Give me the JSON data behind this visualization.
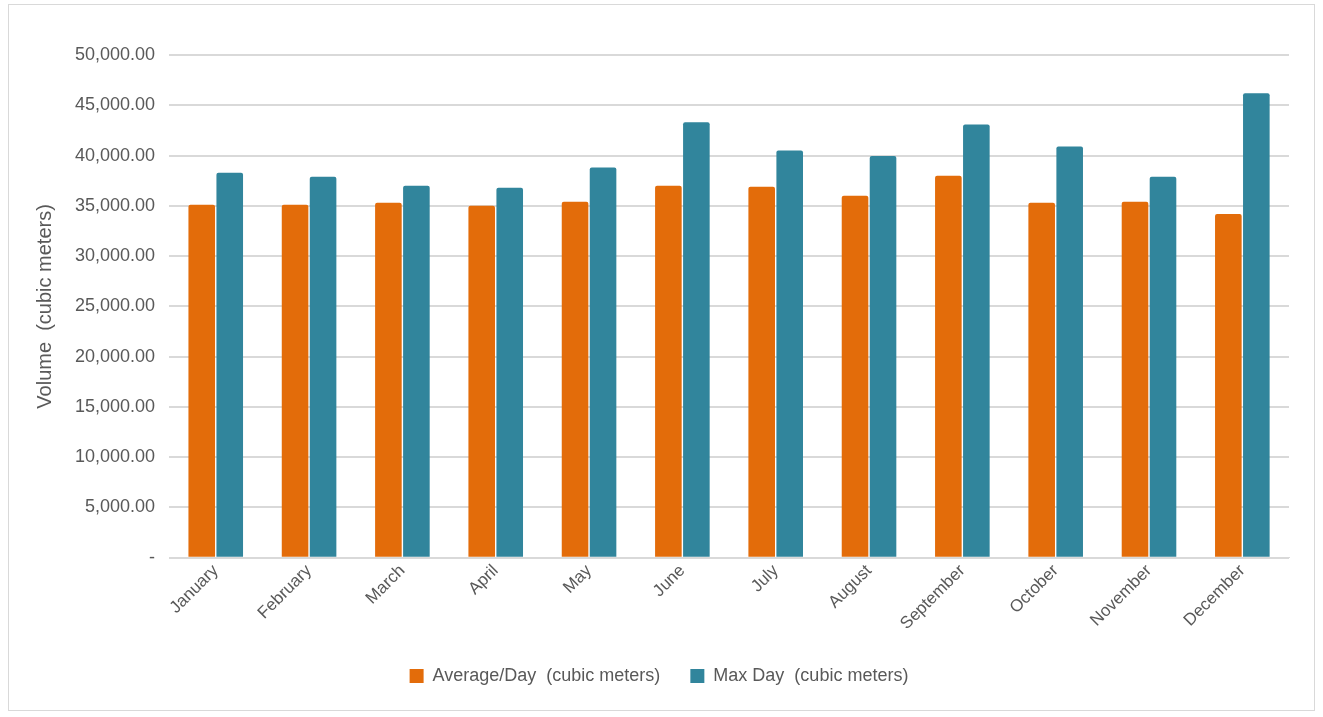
{
  "chart_data": {
    "type": "bar",
    "ylabel": "Volume  (cubic meters)",
    "categories": [
      "January",
      "February",
      "March",
      "April",
      "May",
      "June",
      "July",
      "August",
      "September",
      "October",
      "November",
      "December"
    ],
    "series": [
      {
        "name": "Average/Day  (cubic meters)",
        "color": "#e36c0a",
        "values": [
          35100,
          35100,
          35300,
          35000,
          35400,
          37000,
          36900,
          36000,
          38000,
          35300,
          35400,
          34200
        ]
      },
      {
        "name": "Max Day  (cubic meters)",
        "color": "#31859c",
        "values": [
          38300,
          37900,
          37000,
          36800,
          38800,
          43300,
          40500,
          39950,
          43100,
          40900,
          37900,
          46200
        ]
      }
    ],
    "ylim": [
      0,
      50000
    ],
    "yticks": [
      {
        "value": 0,
        "label": "-"
      },
      {
        "value": 5000,
        "label": "5,000.00"
      },
      {
        "value": 10000,
        "label": "10,000.00"
      },
      {
        "value": 15000,
        "label": "15,000.00"
      },
      {
        "value": 20000,
        "label": "20,000.00"
      },
      {
        "value": 25000,
        "label": "25,000.00"
      },
      {
        "value": 30000,
        "label": "30,000.00"
      },
      {
        "value": 35000,
        "label": "35,000.00"
      },
      {
        "value": 40000,
        "label": "40,000.00"
      },
      {
        "value": 45000,
        "label": "45,000.00"
      },
      {
        "value": 50000,
        "label": "50,000.00"
      }
    ],
    "grid": "y",
    "legend": "bottom"
  }
}
